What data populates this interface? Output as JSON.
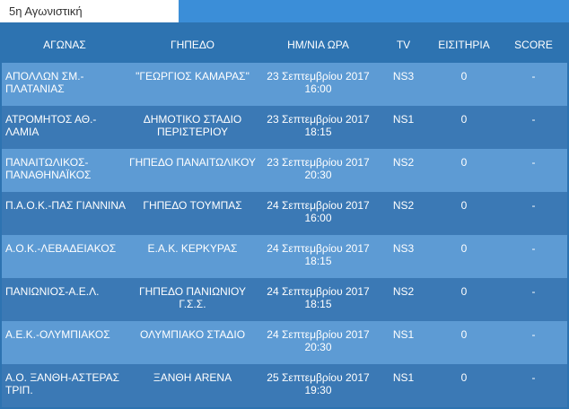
{
  "tab": {
    "label": "5η Αγωνιστική"
  },
  "table": {
    "headers": [
      "ΑΓΩΝΑΣ",
      "ΓΗΠΕΔΟ",
      "ΗΜ/ΝΙΑ ΩΡΑ",
      "TV",
      "ΕΙΣΙΤΗΡΙΑ",
      "SCORE"
    ],
    "rows": [
      {
        "match": "ΑΠΟΛΛΩΝ ΣΜ.-ΠΛΑΤΑΝΙΑΣ",
        "stadium": "\"ΓΕΩΡΓΙΟΣ ΚΑΜΑΡΑΣ\"",
        "date": "23 Σεπτεμβρίου 2017",
        "time": "16:00",
        "tv": "NS3",
        "tickets": "0",
        "score": "-"
      },
      {
        "match": "ΑΤΡΟΜΗΤΟΣ ΑΘ.-ΛΑΜΙΑ",
        "stadium": "ΔΗΜΟΤΙΚΟ ΣΤΑΔΙΟ ΠΕΡΙΣΤΕΡΙΟΥ",
        "date": "23 Σεπτεμβρίου 2017",
        "time": "18:15",
        "tv": "NS1",
        "tickets": "0",
        "score": "-"
      },
      {
        "match": "ΠΑΝΑΙΤΩΛΙΚΟΣ-ΠΑΝΑΘΗΝΑΪΚΟΣ",
        "stadium": "ΓΗΠΕΔΟ ΠΑΝΑΙΤΩΛΙΚΟΥ",
        "date": "23 Σεπτεμβρίου 2017",
        "time": "20:30",
        "tv": "NS2",
        "tickets": "0",
        "score": "-"
      },
      {
        "match": "Π.Α.Ο.Κ.-ΠΑΣ ΓΙΑΝΝΙΝΑ",
        "stadium": "ΓΗΠΕΔΟ ΤΟΥΜΠΑΣ",
        "date": "24 Σεπτεμβρίου 2017",
        "time": "16:00",
        "tv": "NS2",
        "tickets": "0",
        "score": "-"
      },
      {
        "match": "Α.Ο.Κ.-ΛΕΒΑΔΕΙΑΚΟΣ",
        "stadium": "Ε.Α.Κ. ΚΕΡΚΥΡΑΣ",
        "date": "24 Σεπτεμβρίου 2017",
        "time": "18:15",
        "tv": "NS3",
        "tickets": "0",
        "score": "-"
      },
      {
        "match": "ΠΑΝΙΩΝΙΟΣ-Α.Ε.Λ.",
        "stadium": "ΓΗΠΕΔΟ ΠΑΝΙΩΝΙΟΥ Γ.Σ.Σ.",
        "date": "24 Σεπτεμβρίου 2017",
        "time": "18:15",
        "tv": "NS2",
        "tickets": "0",
        "score": "-"
      },
      {
        "match": "Α.Ε.Κ.-ΟΛΥΜΠΙΑΚΟΣ",
        "stadium": "ΟΛΥΜΠΙΑΚΟ ΣΤΑΔΙΟ",
        "date": "24 Σεπτεμβρίου 2017",
        "time": "20:30",
        "tv": "NS1",
        "tickets": "0",
        "score": "-"
      },
      {
        "match": "Α.Ο. ΞΑΝΘΗ-ΑΣΤΕΡΑΣ ΤΡΙΠ.",
        "stadium": "ΞΑΝΘΗ ARENA",
        "date": "25 Σεπτεμβρίου 2017",
        "time": "19:30",
        "tv": "NS1",
        "tickets": "0",
        "score": "-"
      }
    ]
  }
}
